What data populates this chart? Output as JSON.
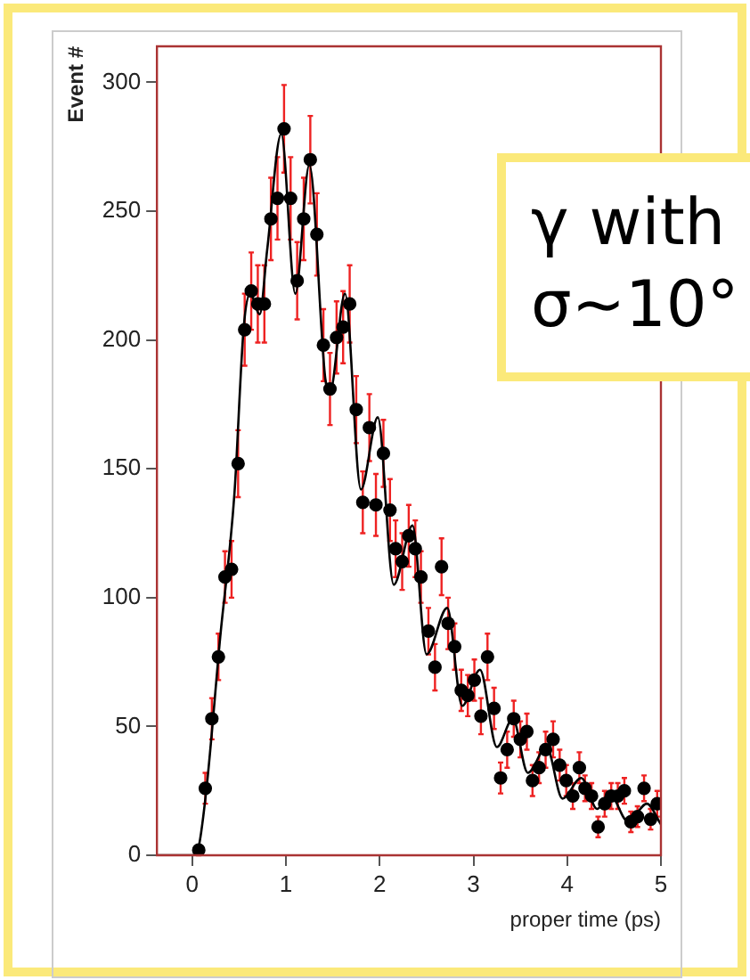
{
  "chart_data": {
    "type": "scatter",
    "xlabel": "proper time (ps)",
    "ylabel": "Event #",
    "annotations": [
      "γ with\nσ~10°"
    ],
    "xlim": [
      -0.376,
      5
    ],
    "xticks": [
      0,
      1,
      2,
      3,
      4,
      5
    ],
    "ylim": [
      0,
      314
    ],
    "yticks": [
      0,
      50,
      100,
      150,
      200,
      250,
      300
    ],
    "grid": false,
    "legend": false,
    "series": [
      {
        "color": "#000000",
        "marker": "circle",
        "x": [
          0.07,
          0.14,
          0.21,
          0.28,
          0.35,
          0.42,
          0.49,
          0.56,
          0.63,
          0.7,
          0.77,
          0.84,
          0.91,
          0.98,
          1.05,
          1.12,
          1.19,
          1.26,
          1.33,
          1.4,
          1.47,
          1.54,
          1.61,
          1.68,
          1.75,
          1.82,
          1.89,
          1.96,
          2.04,
          2.11,
          2.17,
          2.24,
          2.31,
          2.38,
          2.44,
          2.52,
          2.59,
          2.66,
          2.73,
          2.8,
          2.87,
          2.94,
          3.01,
          3.08,
          3.15,
          3.22,
          3.29,
          3.36,
          3.43,
          3.5,
          3.57,
          3.63,
          3.7,
          3.77,
          3.85,
          3.92,
          3.99,
          4.06,
          4.13,
          4.19,
          4.26,
          4.33,
          4.4,
          4.47,
          4.54,
          4.61,
          4.68,
          4.75,
          4.82,
          4.89,
          4.96
        ],
        "values": [
          2,
          26,
          53,
          77,
          108,
          111,
          152,
          204,
          219,
          214,
          214,
          247,
          255,
          282,
          255,
          223,
          247,
          270,
          241,
          198,
          181,
          201,
          205,
          214,
          173,
          137,
          166,
          136,
          156,
          134,
          119,
          114,
          124,
          119,
          108,
          87,
          73,
          112,
          90,
          81,
          64,
          62,
          68,
          54,
          77,
          57,
          30,
          41,
          53,
          45,
          48,
          29,
          34,
          41,
          45,
          35,
          29,
          23,
          34,
          26,
          23,
          11,
          20,
          23,
          23,
          25,
          13,
          15,
          26,
          14,
          20
        ],
        "errors": [
          2,
          6,
          8,
          9,
          10,
          11,
          13,
          14,
          15,
          15,
          15,
          16,
          16,
          17,
          16,
          15,
          16,
          17,
          16,
          14,
          14,
          14,
          14,
          15,
          13,
          12,
          13,
          12,
          13,
          12,
          11,
          11,
          12,
          11,
          10,
          9,
          9,
          11,
          10,
          9,
          8,
          8,
          8,
          7,
          9,
          8,
          6,
          7,
          7,
          7,
          7,
          6,
          6,
          7,
          7,
          6,
          6,
          5,
          6,
          5,
          5,
          4,
          5,
          5,
          5,
          5,
          4,
          4,
          5,
          4,
          5
        ]
      },
      {
        "type": "line",
        "color": "#000000",
        "marker": "none",
        "line_style": "solid",
        "x": [
          -0.376,
          0.0,
          0.06,
          0.15,
          0.3,
          0.45,
          0.55,
          0.62,
          0.72,
          0.8,
          0.95,
          1.1,
          1.25,
          1.42,
          1.47,
          1.63,
          1.8,
          1.98,
          2.15,
          2.35,
          2.5,
          2.72,
          2.88,
          3.07,
          3.25,
          3.42,
          3.58,
          3.78,
          3.95,
          4.15,
          4.32,
          4.45,
          4.65,
          4.85,
          5
        ],
        "values": [
          0,
          0,
          2,
          25,
          85,
          140,
          205,
          218,
          210,
          235,
          280,
          218,
          268,
          185,
          180,
          218,
          142,
          170,
          105,
          128,
          78,
          96,
          58,
          72,
          42,
          53,
          32,
          42,
          22,
          30,
          18,
          24,
          13,
          20,
          12
        ]
      }
    ]
  }
}
